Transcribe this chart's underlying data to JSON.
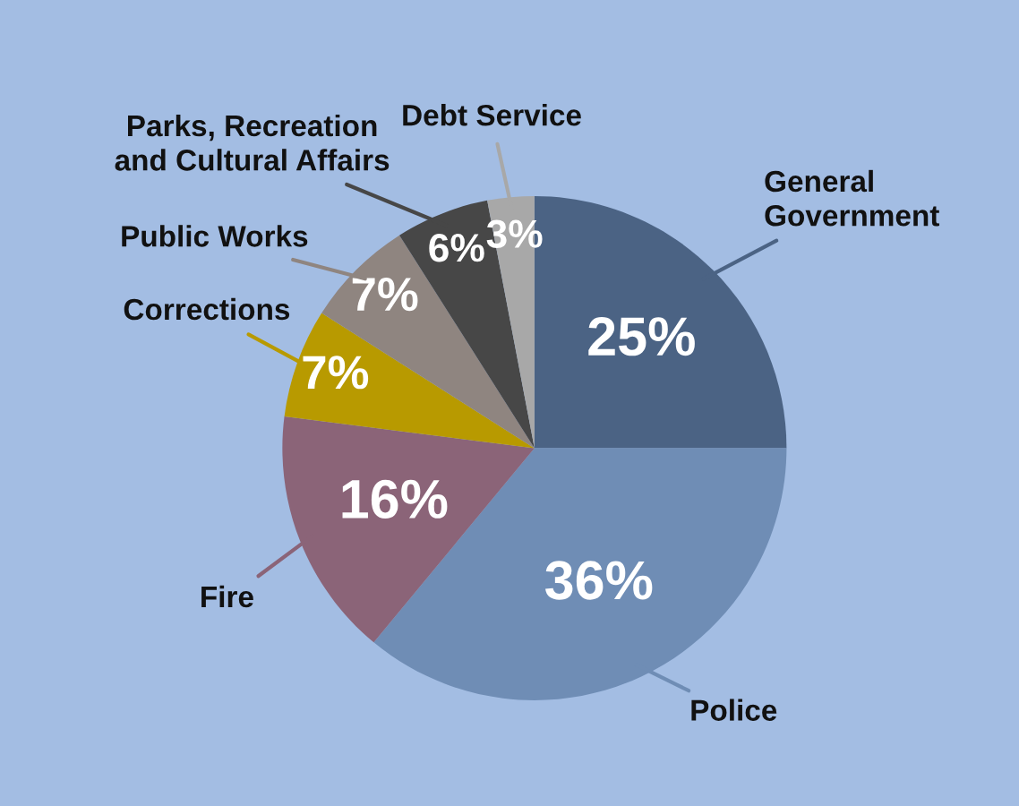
{
  "chart_data": {
    "type": "pie",
    "categories": [
      "General Government",
      "Police",
      "Fire",
      "Corrections",
      "Public Works",
      "Parks, Recreation and Cultural Affairs",
      "Debt Service"
    ],
    "values": [
      25,
      36,
      16,
      7,
      7,
      6,
      3
    ],
    "colors": [
      "#4b6384",
      "#6f8db5",
      "#8b6478",
      "#b89a00",
      "#8f8580",
      "#474747",
      "#a8a8a8"
    ],
    "value_labels": [
      "25%",
      "36%",
      "16%",
      "7%",
      "7%",
      "6%",
      "3%"
    ]
  }
}
